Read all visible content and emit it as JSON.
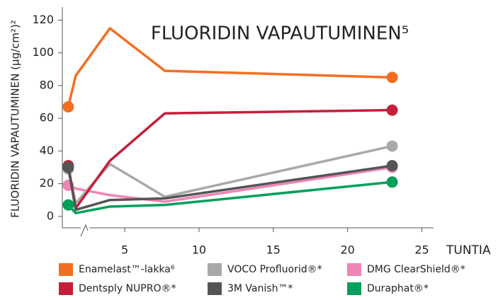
{
  "chart_data": {
    "type": "line",
    "title": "FLUORIDIN VAPAUTUMINEN⁵",
    "y_label": "FLUORIDIN VAPAUTUMINEN (µg/cm²)²",
    "x_label": "TUNTIA",
    "x": [
      1.2,
      1.7,
      4,
      7.7,
      23
    ],
    "series": [
      {
        "name": "Enamelast™-lakka⁶",
        "color": "#f26f21",
        "values": [
          67,
          86,
          115,
          89,
          85
        ]
      },
      {
        "name": "VOCO Profluorid®*",
        "color": "#a9a9a9",
        "values": [
          29,
          8,
          32,
          12,
          43
        ]
      },
      {
        "name": "DMG ClearShield®*",
        "color": "#ee85b5",
        "values": [
          19,
          17,
          13,
          9,
          30
        ]
      },
      {
        "name": "Dentsply NUPRO®*",
        "color": "#c41e3a",
        "values": [
          31,
          5,
          34,
          63,
          65
        ]
      },
      {
        "name": "3M Vanish™*",
        "color": "#555555",
        "values": [
          30,
          4,
          10,
          11,
          31
        ]
      },
      {
        "name": "Duraphat®*",
        "color": "#00a05a",
        "values": [
          7,
          2,
          6,
          7,
          21
        ]
      }
    ],
    "xlim": [
      0.8,
      25.5
    ],
    "xticks": [
      5,
      10,
      15,
      20,
      25
    ],
    "ylim": [
      -7,
      128
    ],
    "yticks": [
      0,
      20,
      40,
      60,
      80,
      100,
      120
    ],
    "legend": "bottom"
  }
}
